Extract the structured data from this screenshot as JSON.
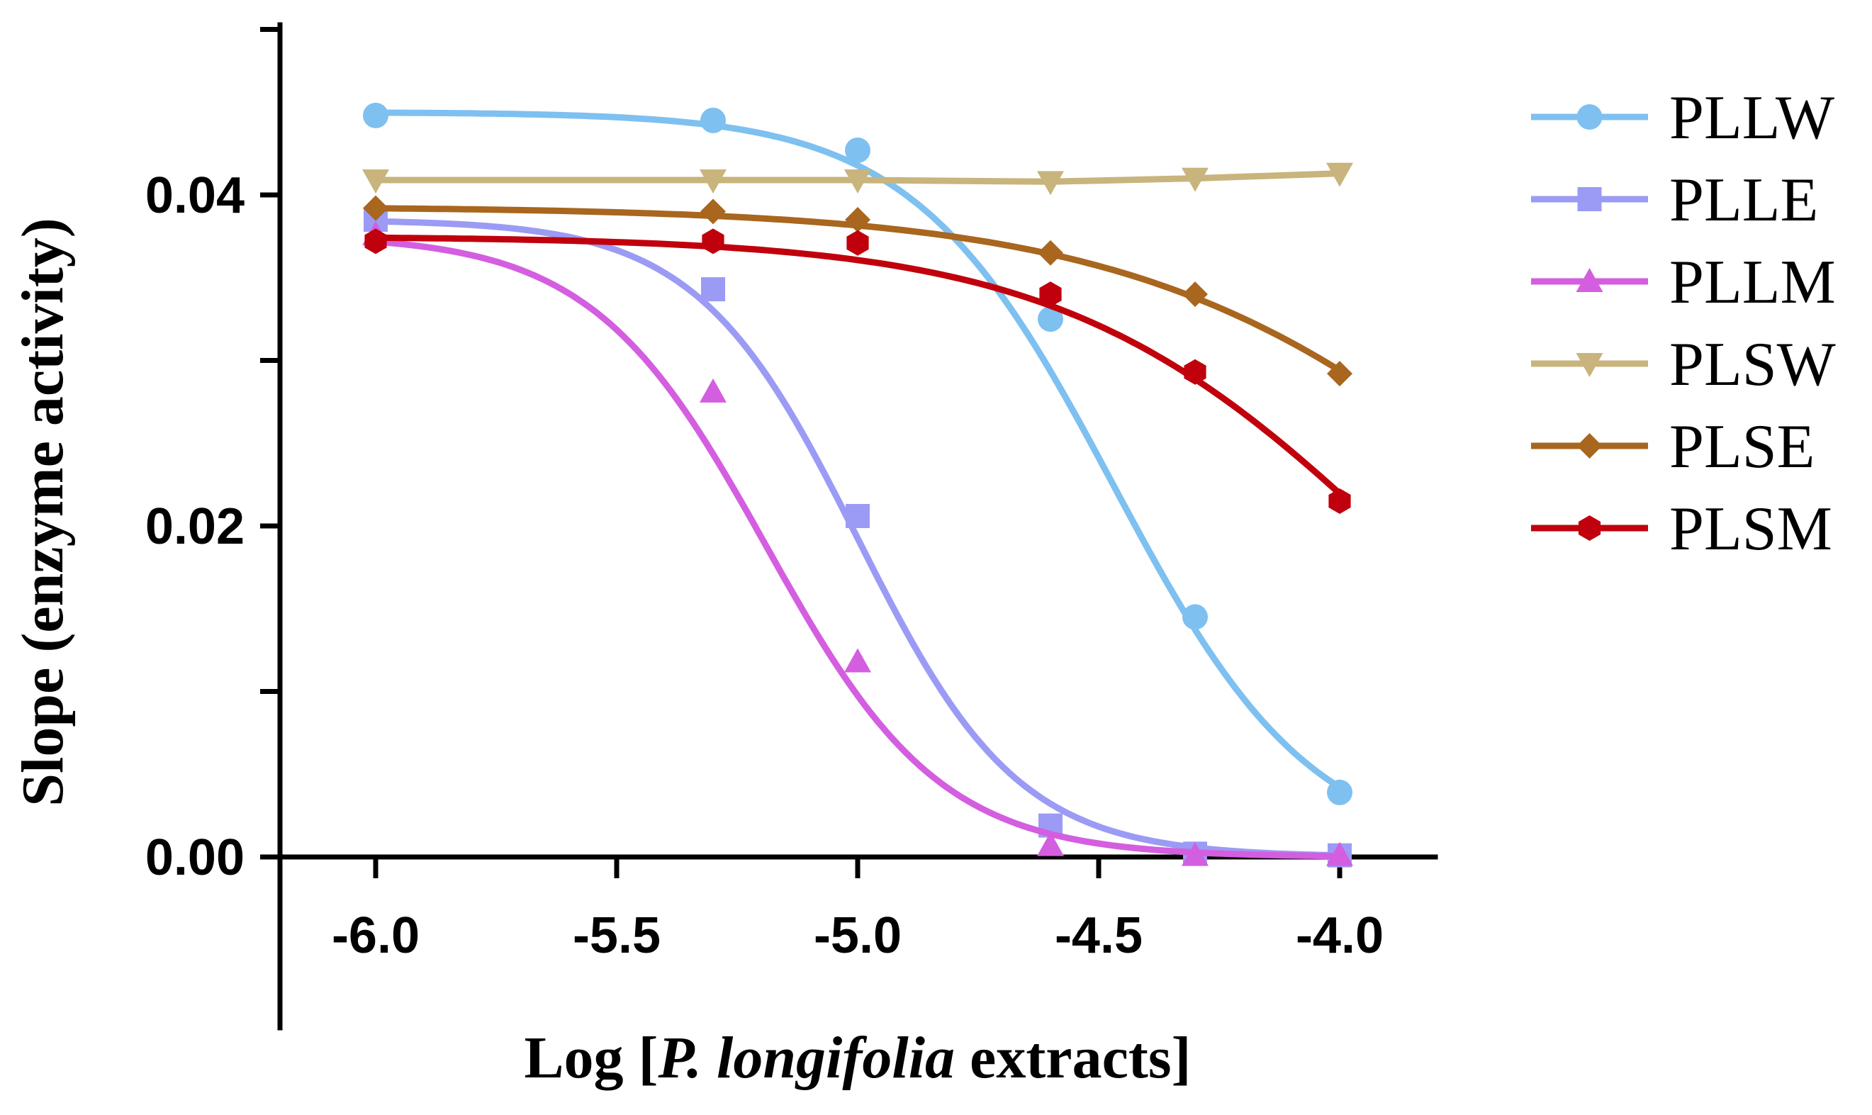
{
  "chart_data": {
    "type": "line",
    "title": "",
    "xlabel_prefix": "Log [",
    "xlabel_italic": "P. longifolia",
    "xlabel_suffix": " extracts]",
    "ylabel": "Slope (enzyme activity)",
    "xlim": [
      -6.2,
      -3.8
    ],
    "ylim": [
      -0.0102,
      0.05
    ],
    "x_ticks": [
      -6.0,
      -5.5,
      -5.0,
      -4.5,
      -4.0
    ],
    "x_tick_labels": [
      "-6.0",
      "-5.5",
      "-5.0",
      "-4.5",
      "-4.0"
    ],
    "y_ticks": [
      0.0,
      0.01,
      0.02,
      0.03,
      0.04,
      0.05
    ],
    "y_tick_labels": [
      "0.00",
      "",
      "0.02",
      "",
      "0.04",
      ""
    ],
    "grid": false,
    "legend_position": "right",
    "x": [
      -6.0,
      -5.3,
      -5.0,
      -4.6,
      -4.3,
      -4.0
    ],
    "series": [
      {
        "name": "PLLW",
        "color": "#7ec0f0",
        "marker": "circle",
        "values": [
          0.0448,
          0.0445,
          0.0427,
          0.0325,
          0.0145,
          0.0039
        ],
        "fit": {
          "top": 0.045,
          "bottom": 0.0,
          "logic50": -4.47,
          "hill": 2.1
        }
      },
      {
        "name": "PLLE",
        "color": "#9b9bf5",
        "marker": "square",
        "values": [
          0.0385,
          0.0343,
          0.0206,
          0.0019,
          0.0002,
          0.0001
        ],
        "fit": {
          "top": 0.0385,
          "bottom": 0.0,
          "logic50": -5.0,
          "hill": 2.6
        }
      },
      {
        "name": "PLLM",
        "color": "#d45ee0",
        "marker": "triangle-up",
        "values": [
          0.0376,
          0.0281,
          0.0118,
          0.0007,
          0.0001,
          0.0001
        ],
        "fit": {
          "top": 0.0376,
          "bottom": 0.0,
          "logic50": -5.19,
          "hill": 2.4
        }
      },
      {
        "name": "PLSW",
        "color": "#c8b47c",
        "marker": "triangle-down",
        "values": [
          0.0409,
          0.0409,
          0.0409,
          0.0408,
          0.041,
          0.0413
        ],
        "fit": null
      },
      {
        "name": "PLSE",
        "color": "#a8661e",
        "marker": "diamond",
        "values": [
          0.0392,
          0.039,
          0.0385,
          0.0365,
          0.034,
          0.0292
        ],
        "fit": {
          "top": 0.0393,
          "bottom": 0.0,
          "logic50": -3.55,
          "hill": 1.05
        }
      },
      {
        "name": "PLSM",
        "color": "#c0000c",
        "marker": "hexagon",
        "values": [
          0.0372,
          0.0372,
          0.0371,
          0.034,
          0.0293,
          0.0215
        ],
        "fit": {
          "top": 0.0375,
          "bottom": 0.0,
          "logic50": -3.88,
          "hill": 1.25
        }
      }
    ]
  }
}
